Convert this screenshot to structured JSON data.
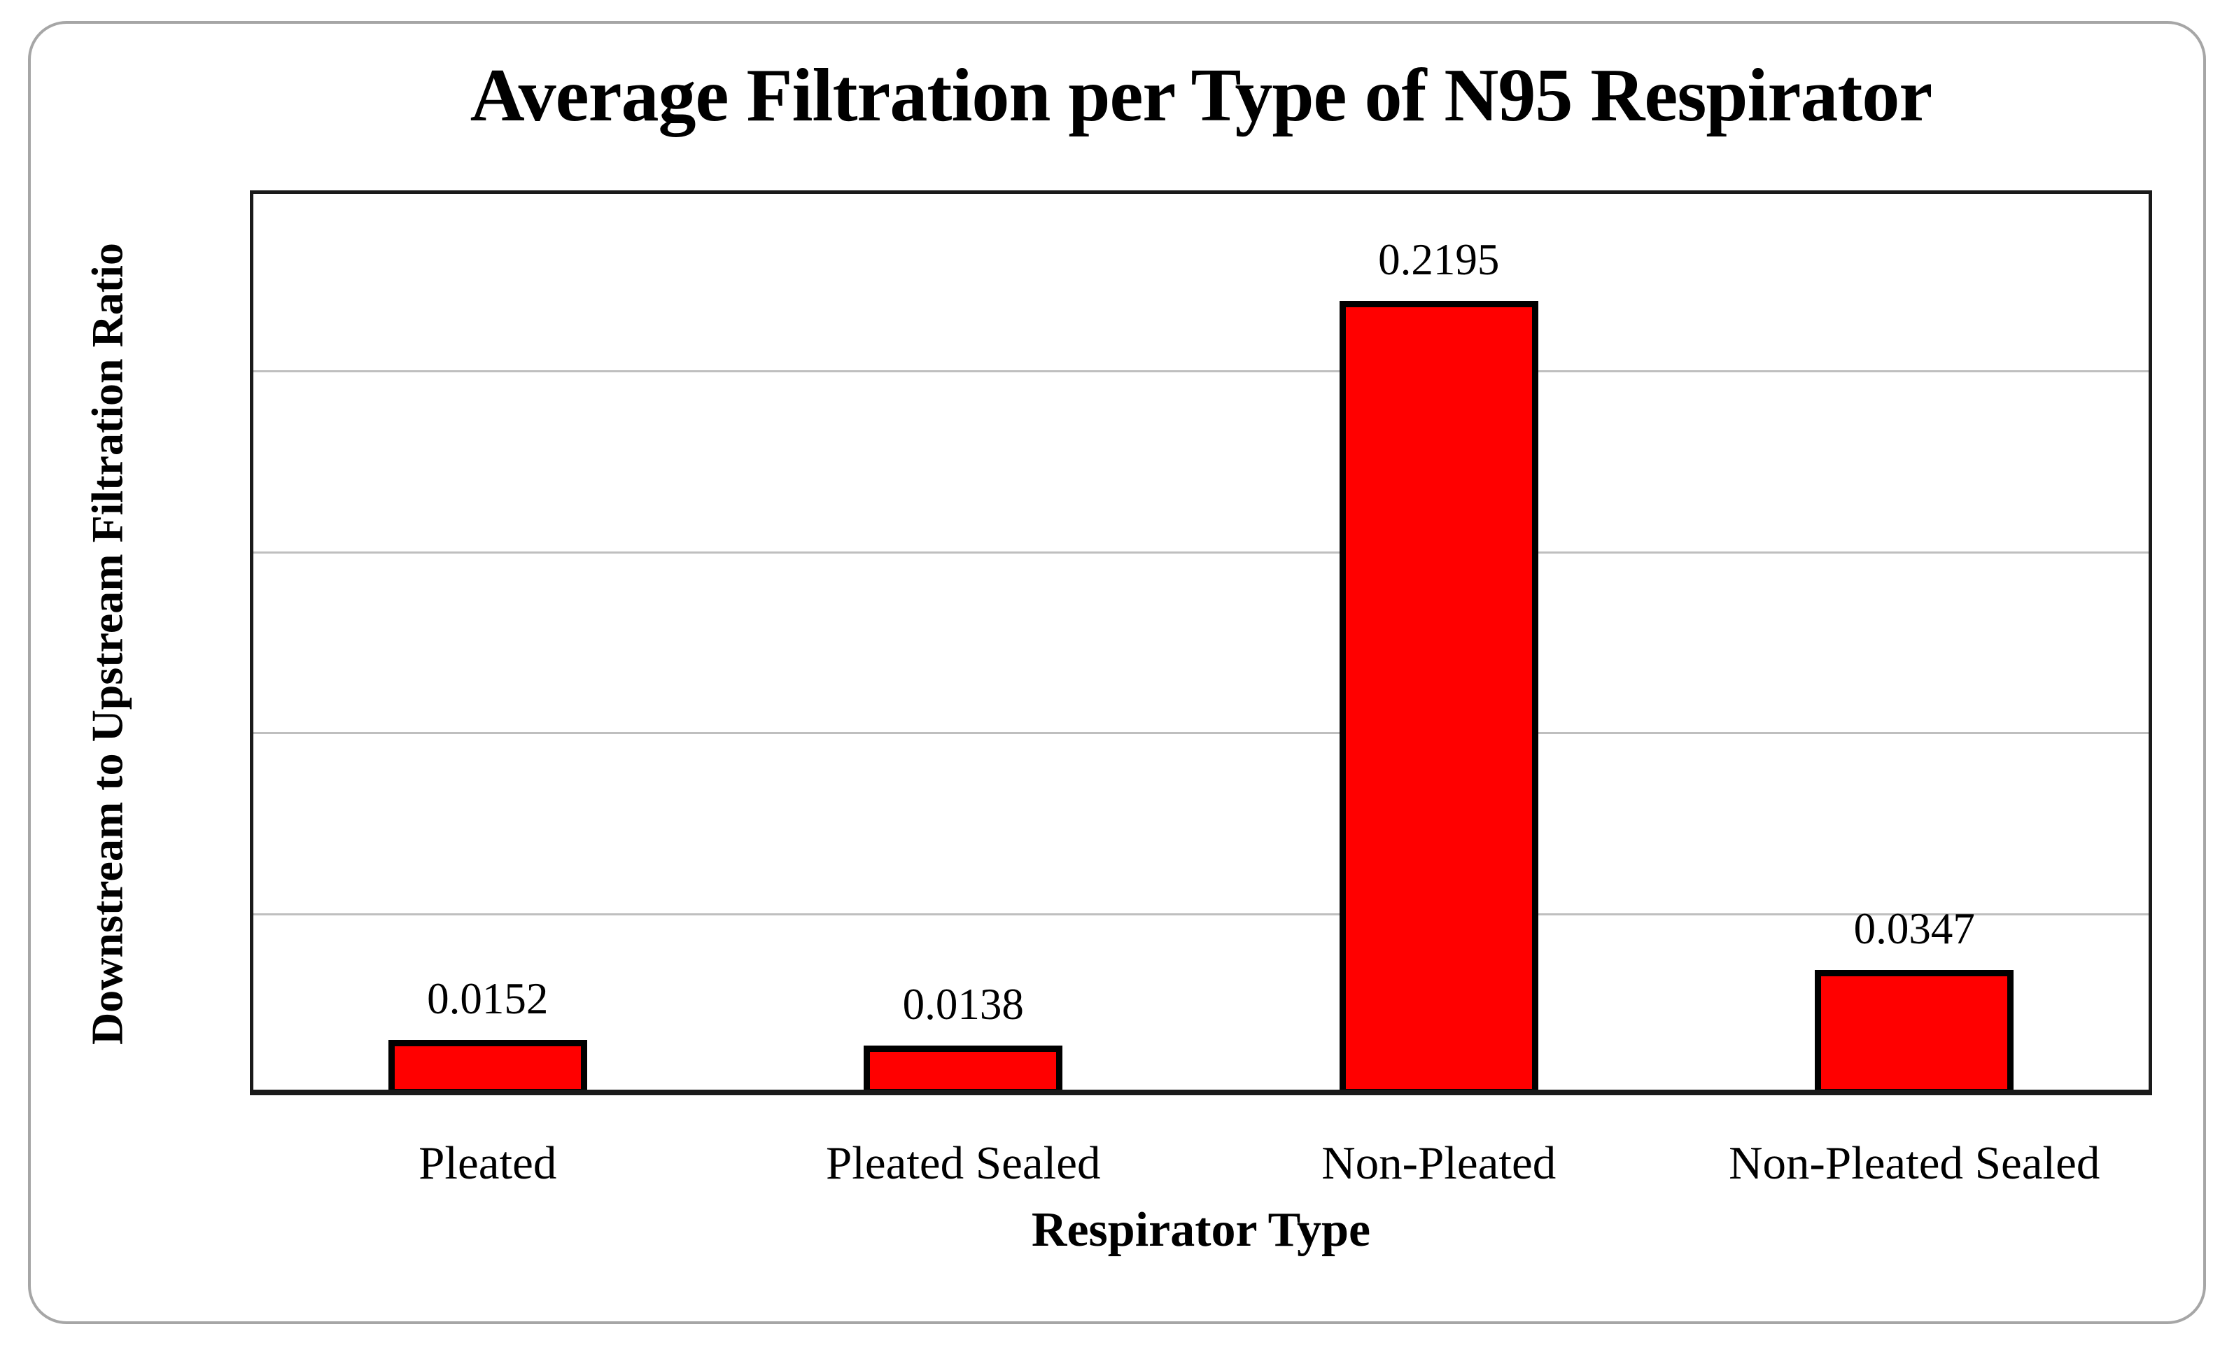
{
  "chart_data": {
    "type": "bar",
    "title": "Average Filtration per Type of N95 Respirator",
    "xlabel": "Respirator Type",
    "ylabel": "Downstream to Upstream Filtration Ratio",
    "categories": [
      "Pleated",
      "Pleated Sealed",
      "Non-Pleated",
      "Non-Pleated Sealed"
    ],
    "values": [
      0.0152,
      0.0138,
      0.2195,
      0.0347
    ],
    "bar_labels": [
      "0.0152",
      "0.0138",
      "0.2195",
      "0.0347"
    ],
    "yticks": [
      {
        "label": "0",
        "value": 0
      },
      {
        "label": "0.05",
        "value": 0.05
      },
      {
        "label": "0.1",
        "value": 0.1
      },
      {
        "label": "0.15",
        "value": 0.15
      },
      {
        "label": "0.2",
        "value": 0.2
      },
      {
        "label": "0.25",
        "value": 0.25
      }
    ],
    "ylim": [
      0,
      0.25
    ],
    "grid": true,
    "legend_position": "none",
    "colors": {
      "bar_fill": "#FF0000",
      "bar_border": "#000000",
      "gridline": "#BFBFBF",
      "axis_frame": "#1A1A1A",
      "text": "#000000",
      "figure_border": "#A6A6A6",
      "background": "#FFFFFF"
    }
  }
}
